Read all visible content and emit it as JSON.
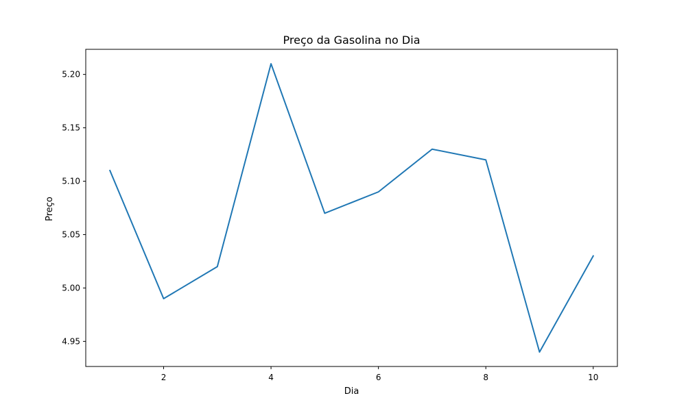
{
  "chart_data": {
    "type": "line",
    "title": "Preço da Gasolina no Dia",
    "xlabel": "Dia",
    "ylabel": "Preço",
    "x": [
      1,
      2,
      3,
      4,
      5,
      6,
      7,
      8,
      9,
      10
    ],
    "series": [
      {
        "values": [
          5.11,
          4.99,
          5.02,
          5.21,
          5.07,
          5.09,
          5.13,
          5.12,
          4.94,
          5.03
        ],
        "color": "#1f77b4"
      }
    ],
    "xticks": [
      2,
      4,
      6,
      8,
      10
    ],
    "xtick_labels": [
      "2",
      "4",
      "6",
      "8",
      "10"
    ],
    "yticks": [
      4.95,
      5.0,
      5.05,
      5.1,
      5.15,
      5.2
    ],
    "ytick_labels": [
      "4.95",
      "5.00",
      "5.05",
      "5.10",
      "5.15",
      "5.20"
    ],
    "xlim": [
      0.55,
      10.45
    ],
    "ylim": [
      4.9265,
      5.2235
    ],
    "grid": false,
    "legend": "none"
  }
}
